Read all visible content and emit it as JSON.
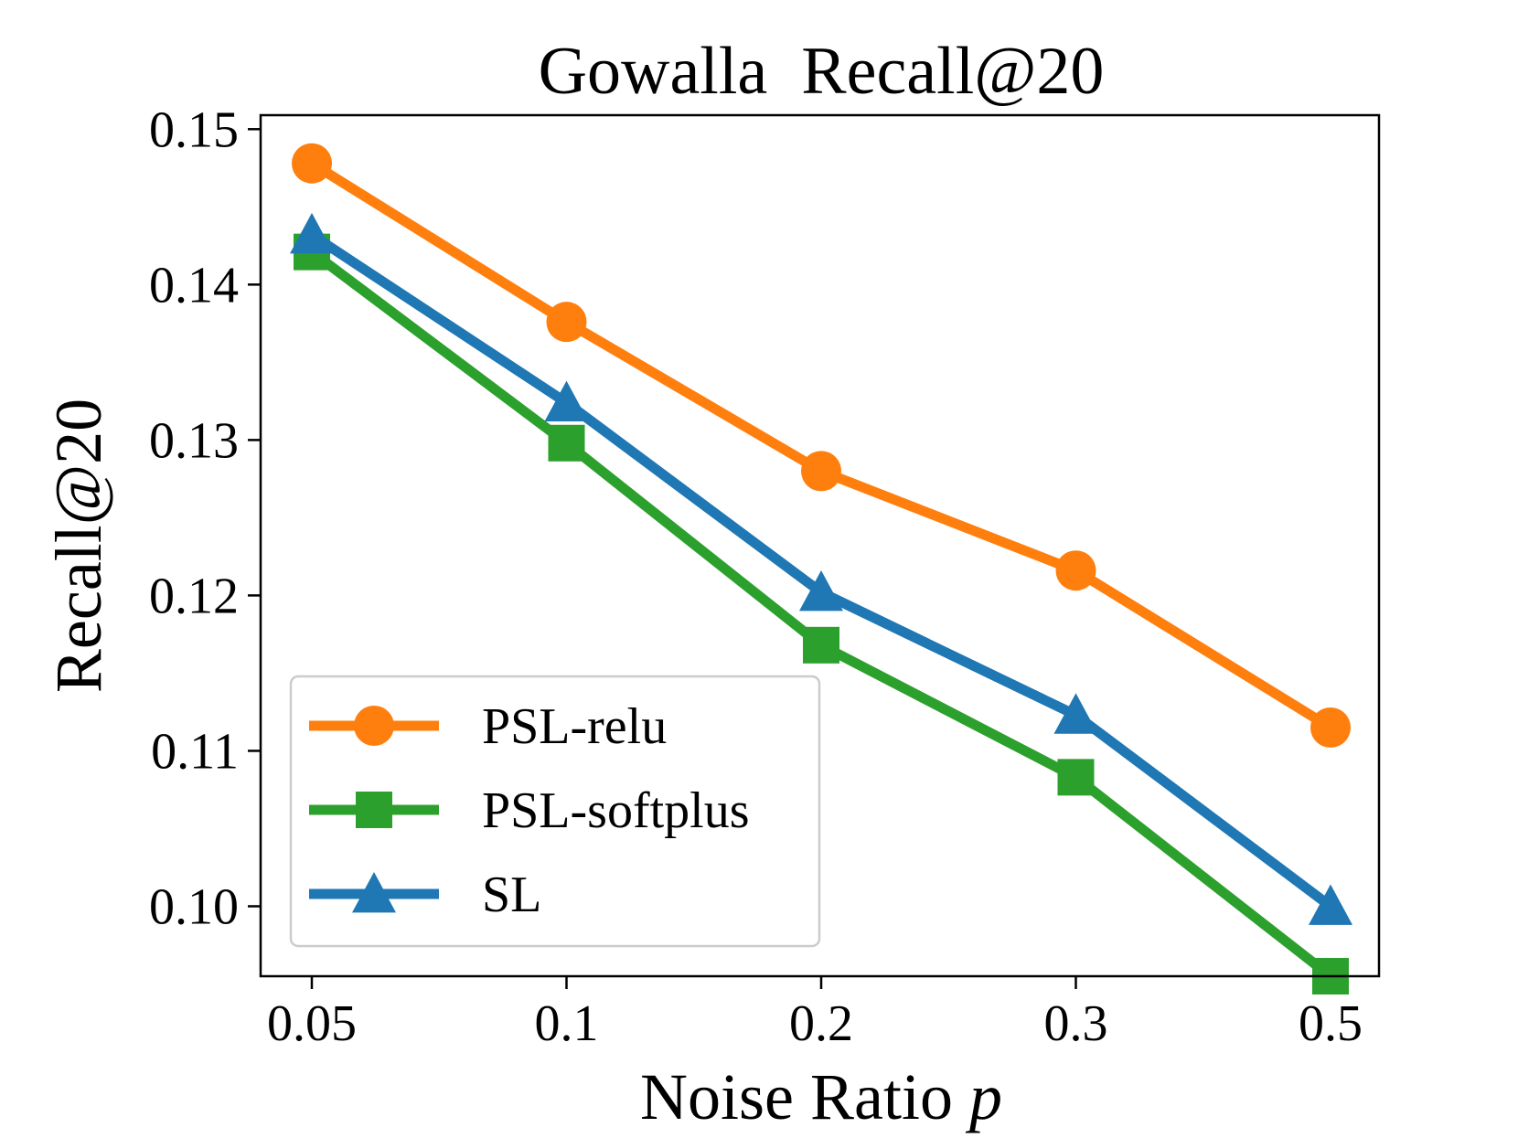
{
  "chart_data": {
    "type": "line",
    "title": "Gowalla  Recall@20",
    "xlabel": "Noise Ratio",
    "xlabel_var": "p",
    "ylabel": "Recall@20",
    "categories": [
      "0.05",
      "0.1",
      "0.2",
      "0.3",
      "0.5"
    ],
    "ylim": [
      0.0955,
      0.1509
    ],
    "yticks": [
      0.1,
      0.11,
      0.12,
      0.13,
      0.14,
      0.15
    ],
    "ytick_labels": [
      "0.10",
      "0.11",
      "0.12",
      "0.13",
      "0.14",
      "0.15"
    ],
    "grid": false,
    "legend_position": "lower-left",
    "series": [
      {
        "name": "PSL-relu",
        "color": "#ff7f0e",
        "marker": "circle",
        "values": [
          0.1478,
          0.1376,
          0.128,
          0.1216,
          0.1115
        ]
      },
      {
        "name": "PSL-softplus",
        "color": "#2ca02c",
        "marker": "square",
        "values": [
          0.1421,
          0.1298,
          0.1168,
          0.1083,
          0.0955
        ]
      },
      {
        "name": "SL",
        "color": "#1f77b4",
        "marker": "triangle",
        "values": [
          0.1432,
          0.1324,
          0.1202,
          0.1123,
          0.1
        ]
      }
    ]
  }
}
